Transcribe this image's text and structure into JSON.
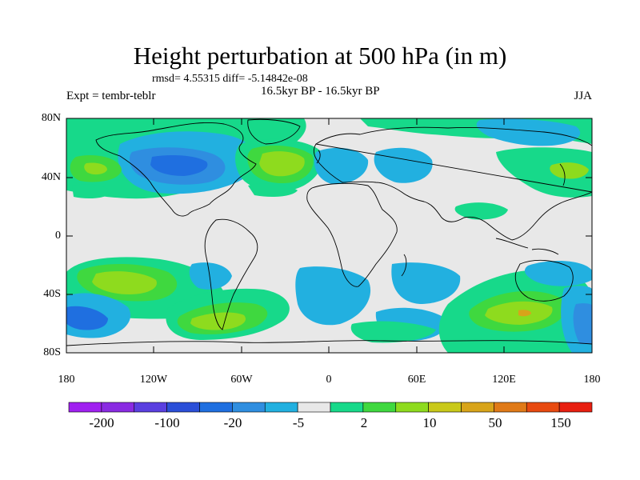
{
  "header": {
    "title": "Height perturbation at 500 hPa (in m)",
    "stats": "rmsd= 4.55315 diff= -5.14842e-08",
    "experiment": "Expt = tembr-teblr",
    "period": "16.5kyr BP - 16.5kyr BP",
    "season": "JJA"
  },
  "axes": {
    "y_labels": [
      "80N",
      "40N",
      "0",
      "40S",
      "80S"
    ],
    "x_labels": [
      "180",
      "120W",
      "60W",
      "0",
      "60E",
      "120E",
      "180"
    ]
  },
  "colorbar": {
    "colors": [
      "#a020f0",
      "#8a2be2",
      "#5a3fe0",
      "#2b4fd8",
      "#1f6fe0",
      "#2f8ee0",
      "#22b0e0",
      "#e8e8e8",
      "#17d98a",
      "#3fd83f",
      "#8edb1e",
      "#c9c91a",
      "#d8a41a",
      "#e07a18",
      "#e84a10",
      "#e81f10"
    ],
    "labels": [
      "-200",
      "-100",
      "-20",
      "-5",
      "2",
      "10",
      "50",
      "150"
    ]
  },
  "map": {
    "background_color": "#e8e8e8",
    "coastline_color": "#000000"
  }
}
